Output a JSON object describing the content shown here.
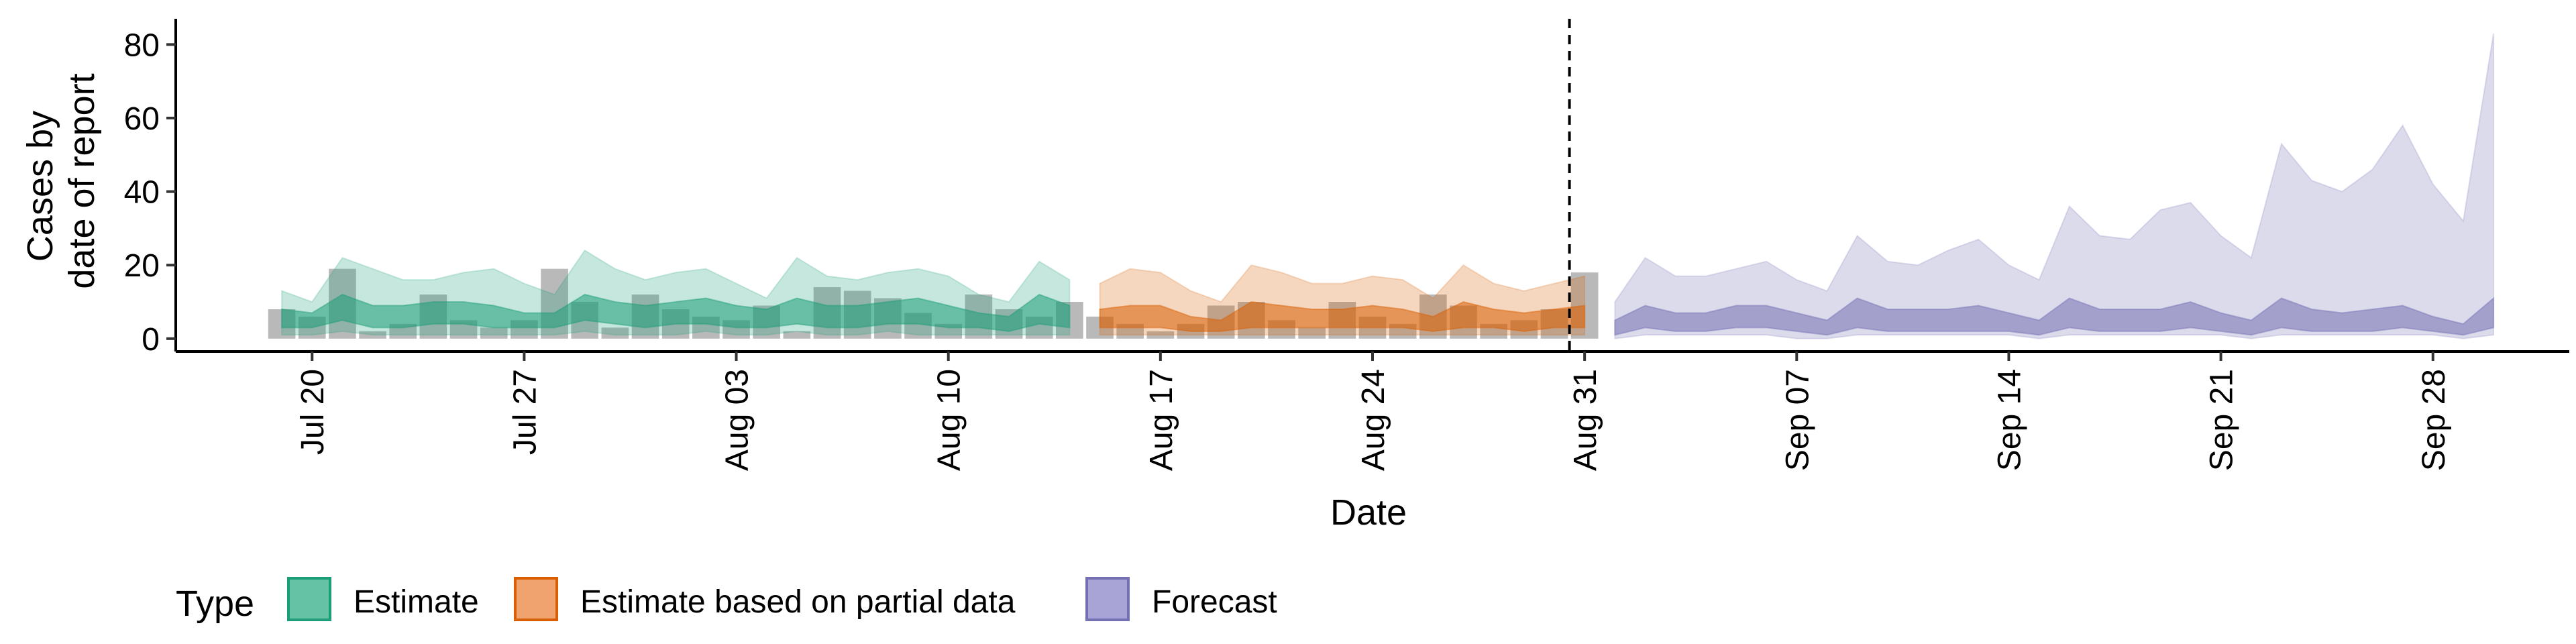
{
  "chart_data": {
    "type": "area",
    "xlabel": "Date",
    "ylabel_lines": [
      "Cases by",
      "date of report"
    ],
    "x_ticks": [
      {
        "label": "Jul 20",
        "day": 19
      },
      {
        "label": "Jul 27",
        "day": 26
      },
      {
        "label": "Aug 03",
        "day": 33
      },
      {
        "label": "Aug 10",
        "day": 40
      },
      {
        "label": "Aug 17",
        "day": 47
      },
      {
        "label": "Aug 24",
        "day": 54
      },
      {
        "label": "Aug 31",
        "day": 61
      },
      {
        "label": "Sep 07",
        "day": 68
      },
      {
        "label": "Sep 14",
        "day": 75
      },
      {
        "label": "Sep 21",
        "day": 82
      },
      {
        "label": "Sep 28",
        "day": 89
      }
    ],
    "y_ticks": [
      0,
      20,
      40,
      60,
      80
    ],
    "xlim_days": [
      14.5,
      93.5
    ],
    "ylim": [
      -3.5,
      87
    ],
    "forecast_start_day": 60.5,
    "grid": false,
    "legend": {
      "title": "Type",
      "position": "bottom-left",
      "entries": [
        {
          "label": "Estimate",
          "fill": "#66C2A5",
          "stroke": "#1B9E77"
        },
        {
          "label": "Estimate based on partial data",
          "fill": "#F0A36E",
          "stroke": "#D95F02"
        },
        {
          "label": "Forecast",
          "fill": "#A8A4D6",
          "stroke": "#7570B3"
        }
      ]
    },
    "observed_cases": {
      "start_day": 18,
      "values": [
        8,
        6,
        19,
        2,
        4,
        12,
        5,
        3,
        5,
        19,
        10,
        3,
        12,
        8,
        6,
        5,
        9,
        2,
        14,
        13,
        11,
        7,
        4,
        12,
        8,
        6,
        10,
        6,
        4,
        2,
        4,
        9,
        10,
        5,
        3,
        10,
        6,
        4,
        12,
        9,
        4,
        5,
        8,
        18
      ]
    },
    "series": [
      {
        "name": "Estimate",
        "start_day": 18,
        "fill_outer": "#1B9E77",
        "fill_inner": "#1B9E77",
        "upper_90": [
          13,
          10,
          22,
          19,
          16,
          16,
          18,
          19,
          15,
          12,
          24,
          19,
          16,
          18,
          19,
          15,
          11,
          22,
          17,
          16,
          18,
          19,
          17,
          12,
          10,
          21,
          16
        ],
        "lower_90": [
          1,
          1,
          2,
          1,
          1,
          1,
          1,
          1,
          1,
          1,
          2,
          1,
          1,
          1,
          2,
          1,
          1,
          2,
          1,
          1,
          2,
          1,
          1,
          1,
          1,
          1,
          1
        ],
        "upper_50": [
          8,
          7,
          12,
          9,
          9,
          10,
          10,
          9,
          7,
          7,
          12,
          10,
          9,
          10,
          11,
          9,
          8,
          11,
          9,
          9,
          10,
          11,
          9,
          7,
          6,
          12,
          9
        ],
        "lower_50": [
          3,
          3,
          5,
          3,
          3,
          4,
          4,
          3,
          3,
          3,
          5,
          4,
          3,
          4,
          4,
          3,
          3,
          4,
          3,
          3,
          4,
          4,
          3,
          3,
          2,
          4,
          3
        ]
      },
      {
        "name": "Estimate based on partial data",
        "start_day": 45,
        "fill_outer": "#D95F02",
        "fill_inner": "#D95F02",
        "upper_90": [
          15,
          19,
          18,
          13,
          10,
          20,
          18,
          15,
          15,
          17,
          16,
          11,
          20,
          15,
          13,
          15,
          17
        ],
        "lower_90": [
          1,
          1,
          1,
          1,
          1,
          1,
          1,
          1,
          1,
          1,
          1,
          1,
          1,
          1,
          1,
          1,
          1
        ],
        "upper_50": [
          8,
          9,
          9,
          6,
          5,
          10,
          9,
          8,
          8,
          9,
          8,
          6,
          10,
          8,
          7,
          8,
          9
        ],
        "lower_50": [
          3,
          3,
          3,
          2,
          2,
          3,
          3,
          3,
          3,
          3,
          3,
          2,
          3,
          3,
          2,
          3,
          3
        ]
      },
      {
        "name": "Forecast",
        "start_day": 62,
        "fill_outer": "#7570B3",
        "fill_inner": "#7570B3",
        "upper_90": [
          10,
          22,
          17,
          17,
          19,
          21,
          16,
          13,
          28,
          21,
          20,
          24,
          27,
          20,
          16,
          36,
          28,
          27,
          35,
          37,
          28,
          22,
          53,
          43,
          40,
          46,
          58,
          42,
          32,
          83
        ],
        "lower_90": [
          0,
          1,
          1,
          1,
          1,
          1,
          0,
          0,
          1,
          1,
          1,
          1,
          1,
          1,
          0,
          1,
          1,
          1,
          1,
          1,
          1,
          0,
          1,
          1,
          1,
          1,
          1,
          1,
          0,
          1
        ],
        "upper_50": [
          5,
          9,
          7,
          7,
          9,
          9,
          7,
          5,
          11,
          8,
          8,
          8,
          9,
          7,
          5,
          11,
          8,
          8,
          8,
          10,
          7,
          5,
          11,
          8,
          7,
          8,
          9,
          6,
          4,
          11
        ],
        "lower_50": [
          1,
          3,
          2,
          2,
          3,
          3,
          2,
          1,
          3,
          2,
          2,
          2,
          2,
          2,
          1,
          3,
          2,
          2,
          2,
          3,
          2,
          1,
          3,
          2,
          2,
          2,
          3,
          2,
          1,
          3
        ]
      }
    ]
  }
}
